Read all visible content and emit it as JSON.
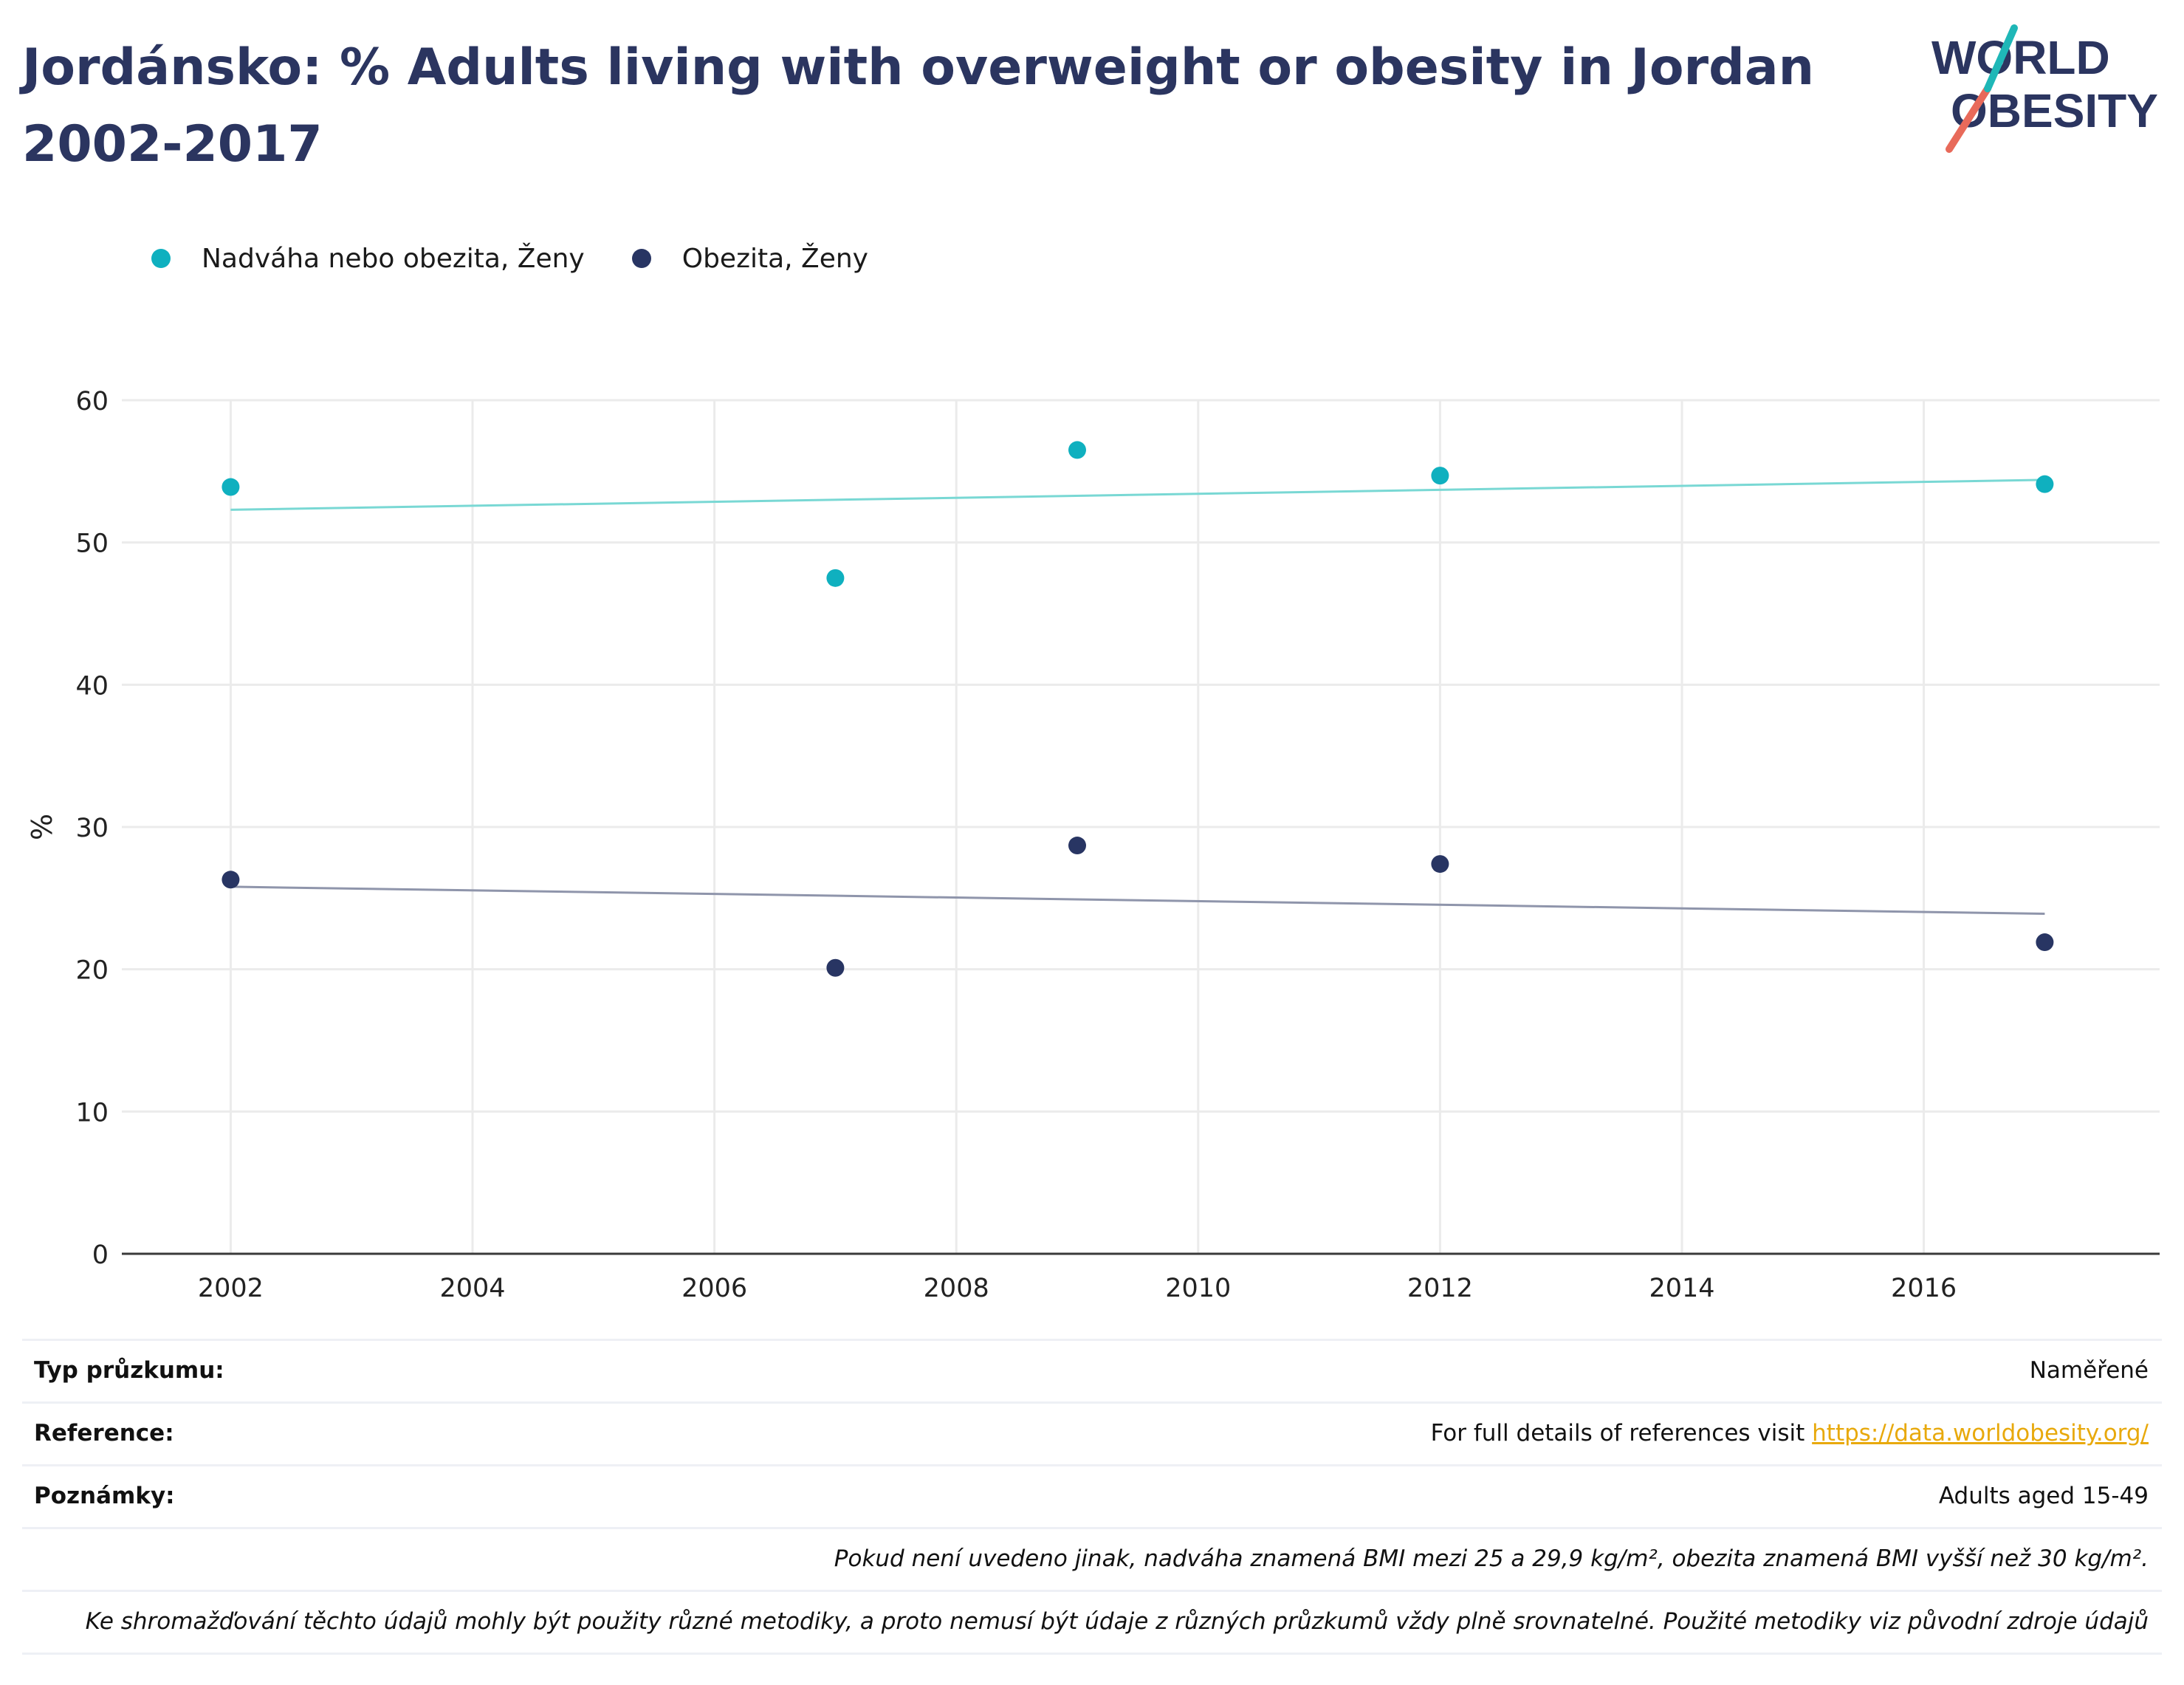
{
  "title": "Jordánsko: % Adults living with overweight or obesity in Jordan 2002-2017",
  "logo": {
    "line1": "WORLD",
    "line2": "OBESITY"
  },
  "colors": {
    "teal": "#0fb0bf",
    "navy": "#283563",
    "title": "#2b3560",
    "link": "#e8a90c",
    "teal_trend": "#79d8d4",
    "navy_trend": "#8f95ab"
  },
  "legend": [
    {
      "label": "Nadváha nebo obezita, Ženy",
      "color": "#0fb0bf"
    },
    {
      "label": "Obezita, Ženy",
      "color": "#283563"
    }
  ],
  "chart_data": {
    "type": "scatter",
    "title": "Jordánsko: % Adults living with overweight or obesity in Jordan 2002-2017",
    "xlabel": "",
    "ylabel": "%",
    "xlim": [
      2001.1,
      2017.95
    ],
    "ylim": [
      0,
      60
    ],
    "xticks": [
      2002,
      2004,
      2006,
      2008,
      2010,
      2012,
      2014,
      2016
    ],
    "yticks": [
      0,
      10,
      20,
      30,
      40,
      50,
      60
    ],
    "grid": true,
    "legend_position": "top-left",
    "series": [
      {
        "name": "Nadváha nebo obezita, Ženy",
        "color": "#0fb0bf",
        "trend_color": "#79d8d4",
        "x": [
          2002,
          2007,
          2009,
          2012,
          2017
        ],
        "y": [
          53.9,
          47.5,
          56.5,
          54.7,
          54.1
        ],
        "trendline": {
          "x": [
            2002,
            2017
          ],
          "y": [
            52.3,
            54.4
          ]
        }
      },
      {
        "name": "Obezita, Ženy",
        "color": "#283563",
        "trend_color": "#8f95ab",
        "x": [
          2002,
          2007,
          2009,
          2012,
          2017
        ],
        "y": [
          26.3,
          20.1,
          28.7,
          27.4,
          21.9
        ],
        "trendline": {
          "x": [
            2002,
            2017
          ],
          "y": [
            25.8,
            23.9
          ]
        }
      }
    ]
  },
  "info": {
    "survey_type_label": "Typ průzkumu:",
    "survey_type_value": "Naměřené",
    "reference_label": "Reference:",
    "reference_text": "For full details of references visit ",
    "reference_link": "https://data.worldobesity.org/",
    "notes_label": "Poznámky:",
    "notes_value": "Adults aged 15-49",
    "note_bmi": "Pokud není uvedeno jinak, nadváha znamená BMI mezi 25 a 29,9 kg/m², obezita znamená BMI vyšší než 30 kg/m².",
    "note_methods": "Ke shromažďování těchto údajů mohly být použity různé metodiky, a proto nemusí být údaje z různých průzkumů vždy plně srovnatelné. Použité metodiky viz původní zdroje údajů"
  }
}
